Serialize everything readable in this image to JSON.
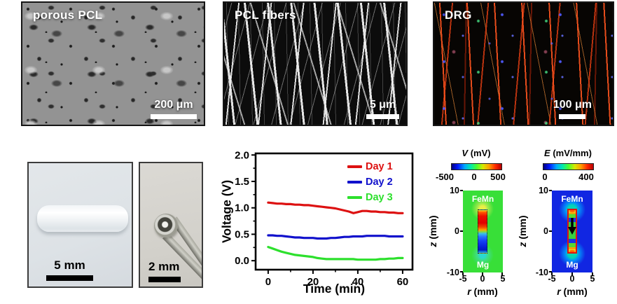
{
  "figure": {
    "sem_panels": [
      {
        "id": "porous-pcl",
        "label": "porous PCL",
        "scale": "200 μm"
      },
      {
        "id": "pcl-fibers",
        "label": "PCL fibers",
        "scale": "5 μm"
      },
      {
        "id": "drg",
        "label": "DRG",
        "scale": "100 μm"
      }
    ],
    "photo_panels": [
      {
        "id": "tube",
        "scale": "5 mm"
      },
      {
        "id": "tweezers",
        "scale": "2 mm"
      }
    ]
  },
  "chart_data": {
    "type": "line",
    "title": "",
    "xlabel": "Time (min)",
    "ylabel": "Voltage (V)",
    "xlim": [
      -5.6,
      64.4
    ],
    "ylim": [
      -0.17,
      2.03
    ],
    "x_ticks": [
      0,
      20,
      40,
      60
    ],
    "x_minor_ticks": [
      10,
      30,
      50
    ],
    "y_ticks": [
      "0.0",
      "0.5",
      "1.0",
      "1.5",
      "2.0"
    ],
    "y_tick_values": [
      0,
      0.5,
      1,
      1.5,
      2
    ],
    "y_minor_ticks": [
      0.25,
      0.75,
      1.25,
      1.75
    ],
    "grid": false,
    "legend_position": "top-right",
    "x": [
      0,
      2,
      4,
      6,
      8,
      10,
      12,
      14,
      16,
      18,
      20,
      22,
      24,
      26,
      28,
      30,
      32,
      34,
      36,
      38,
      40,
      42,
      44,
      46,
      48,
      50,
      52,
      54,
      56,
      58,
      60
    ],
    "series": [
      {
        "name": "Day 1",
        "color": "#dd1111",
        "values": [
          1.1,
          1.09,
          1.08,
          1.08,
          1.07,
          1.07,
          1.06,
          1.06,
          1.05,
          1.05,
          1.04,
          1.03,
          1.02,
          1.01,
          1.0,
          0.99,
          0.97,
          0.95,
          0.93,
          0.9,
          0.92,
          0.94,
          0.94,
          0.93,
          0.93,
          0.92,
          0.92,
          0.91,
          0.91,
          0.9,
          0.9
        ]
      },
      {
        "name": "Day 2",
        "color": "#1111cc",
        "values": [
          0.48,
          0.48,
          0.47,
          0.47,
          0.46,
          0.45,
          0.44,
          0.44,
          0.43,
          0.43,
          0.43,
          0.42,
          0.42,
          0.42,
          0.43,
          0.43,
          0.44,
          0.45,
          0.45,
          0.46,
          0.46,
          0.46,
          0.47,
          0.47,
          0.47,
          0.47,
          0.47,
          0.46,
          0.46,
          0.46,
          0.46
        ]
      },
      {
        "name": "Day 3",
        "color": "#2de02d",
        "values": [
          0.26,
          0.23,
          0.2,
          0.17,
          0.15,
          0.13,
          0.11,
          0.1,
          0.09,
          0.08,
          0.07,
          0.05,
          0.04,
          0.03,
          0.03,
          0.03,
          0.03,
          0.03,
          0.03,
          0.03,
          0.02,
          0.02,
          0.02,
          0.02,
          0.02,
          0.03,
          0.03,
          0.04,
          0.04,
          0.05,
          0.05
        ]
      }
    ]
  },
  "heatmaps": [
    {
      "title_italic": "V",
      "title_rest": " (mV)",
      "colorbar_ticks": [
        "-500",
        "0",
        "500"
      ],
      "electrode_top": "FeMn",
      "electrode_bottom": "Mg",
      "y_axis": {
        "label_italic": "z",
        "label_rest": " (mm)",
        "ticks": [
          "10",
          "0",
          "-10"
        ]
      },
      "x_axis": {
        "label_italic": "r",
        "label_rest": " (mm)",
        "ticks": [
          "-5",
          "0",
          "5"
        ]
      }
    },
    {
      "title_italic": "E",
      "title_rest": " (mV/mm)",
      "colorbar_ticks": [
        "0",
        "400"
      ],
      "electrode_top": "FeMn",
      "electrode_bottom": "Mg",
      "y_axis": {
        "label_italic": "z",
        "label_rest": " (mm)",
        "ticks": [
          "10",
          "0",
          "-10"
        ]
      },
      "x_axis": {
        "label_italic": "r",
        "label_rest": " (mm)",
        "ticks": [
          "-5",
          "0",
          "5"
        ]
      }
    }
  ],
  "colors": {
    "day1": "#dd1111",
    "day2": "#1111cc",
    "day3": "#2de02d",
    "v_map_background": "#38df38",
    "e_map_background": "#1126e2",
    "electrode_outline": "#e01212",
    "colorbar": "jet"
  }
}
